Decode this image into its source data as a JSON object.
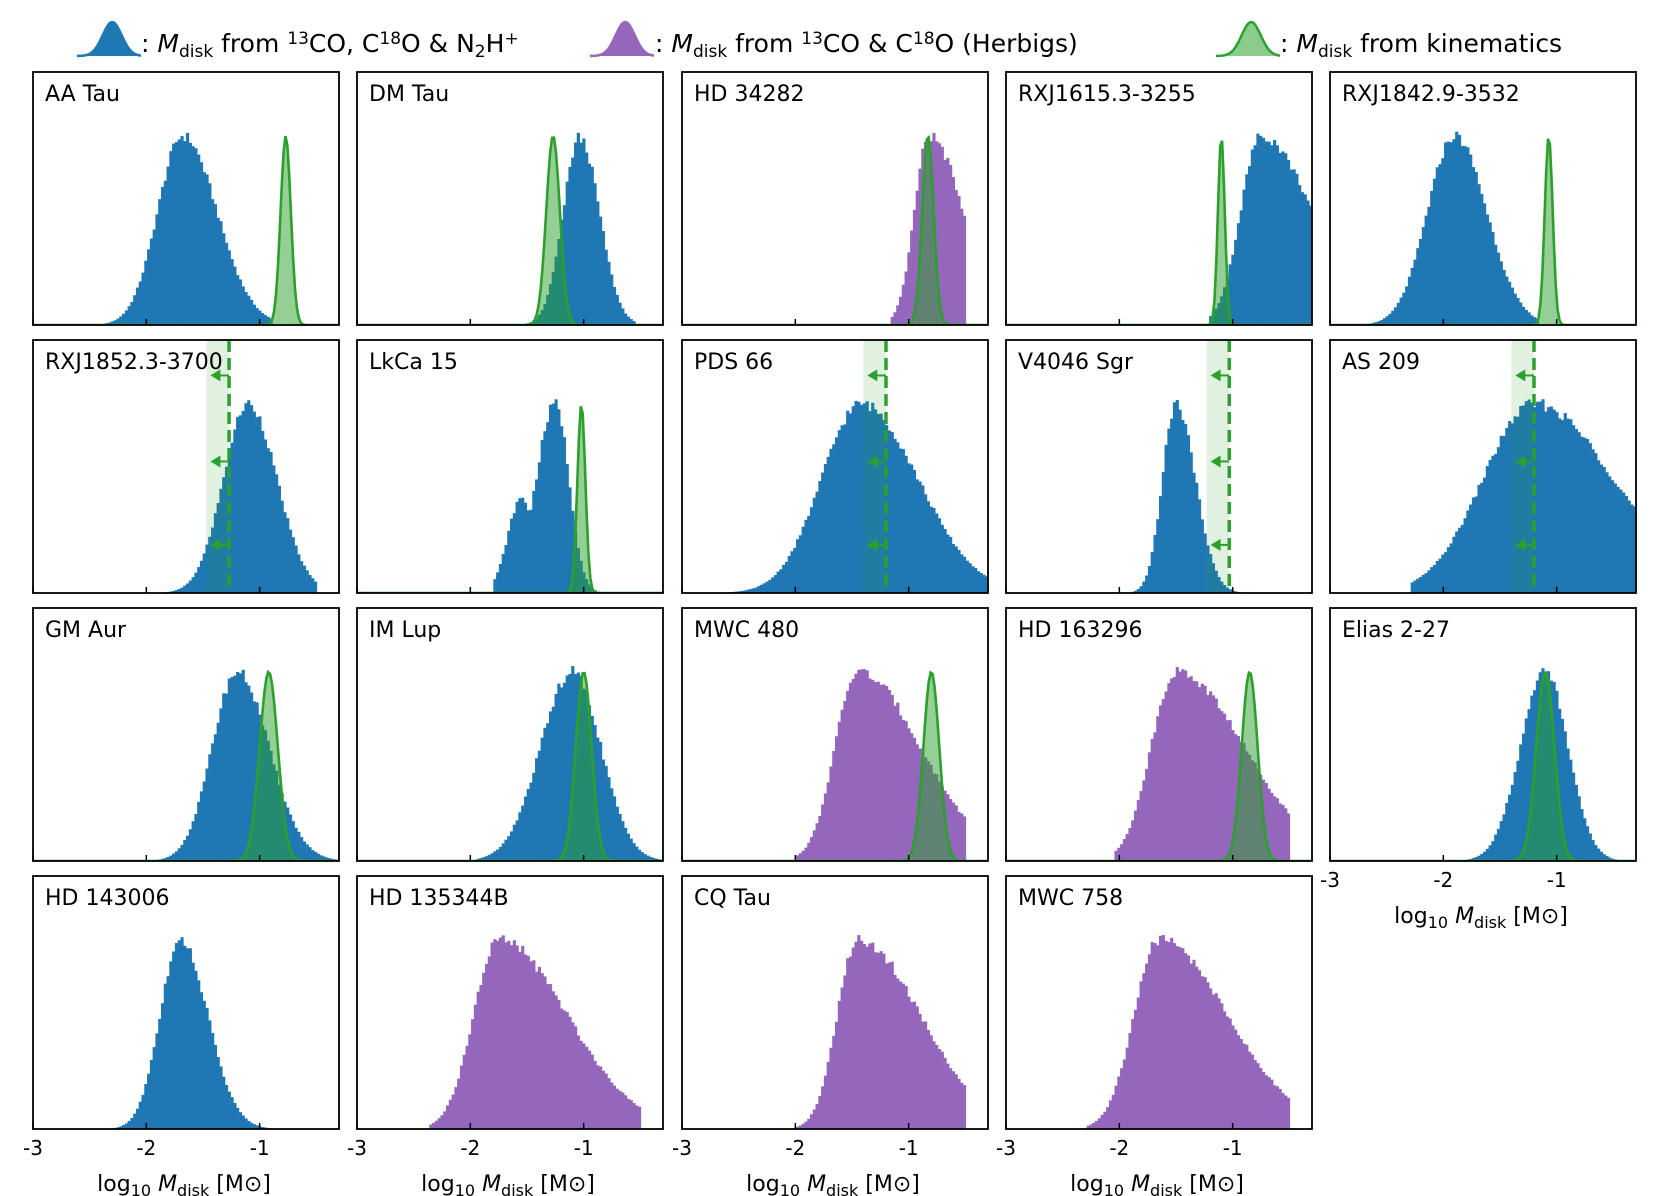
{
  "legend": {
    "blue": {
      "label": "Mdisk",
      "prefix": ": ",
      "suffix": " from ",
      "extra": "13CO, C18O & N2H+",
      "parts": [
        ": ",
        "M",
        "disk",
        " from ",
        "13",
        "CO, C",
        "18",
        "O & N",
        "2",
        "H",
        "+"
      ]
    },
    "purple": {
      "parts": [
        ": ",
        "M",
        "disk",
        " from ",
        "13",
        "CO & C",
        "18",
        "O (Herbigs)"
      ]
    },
    "green": {
      "parts": [
        ": ",
        "M",
        "disk",
        " from kinematics"
      ]
    }
  },
  "colors": {
    "blue": "#1f77b4",
    "purple": "#9467bd",
    "green": "#2ca02c",
    "green_fill": "#8fd08f"
  },
  "axis": {
    "xlabel_parts": [
      "log",
      "10",
      " ",
      "M",
      "disk",
      " [M",
      "⊙",
      "]"
    ],
    "ticks": [
      {
        "value": -3,
        "label": "-3"
      },
      {
        "value": -2,
        "label": "-2"
      },
      {
        "value": -1,
        "label": "-1"
      }
    ]
  },
  "chart_data": {
    "type": "histogram-grid",
    "xlim": [
      -3,
      -0.3
    ],
    "xlabel": "log10 Mdisk [M⊙]",
    "panels": [
      {
        "name": "AA Tau",
        "dist": "blue",
        "peak": -1.68,
        "sl": 0.22,
        "sr": 0.3,
        "lo": -2.45,
        "hi": -0.9,
        "kin": {
          "type": "gauss",
          "mu": -0.77,
          "s": 0.045
        }
      },
      {
        "name": "DM Tau",
        "dist": "blue",
        "peak": -1.03,
        "sl": 0.15,
        "sr": 0.17,
        "lo": -1.9,
        "hi": -0.55,
        "flat": 0.55,
        "kin": {
          "type": "gauss",
          "mu": -1.27,
          "s": 0.06
        }
      },
      {
        "name": "HD 34282",
        "dist": "purple",
        "peak": -0.82,
        "sl": 0.13,
        "sr": 0.3,
        "lo": -1.15,
        "hi": -0.5,
        "kin": {
          "type": "gauss",
          "mu": -0.83,
          "s": 0.05
        }
      },
      {
        "name": "RXJ1615.3-3255",
        "dist": "blue",
        "peak": -0.75,
        "sl": 0.18,
        "sr": 0.45,
        "lo": -1.2,
        "hi": -0.3,
        "kin": {
          "type": "gauss",
          "mu": -1.1,
          "s": 0.03
        }
      },
      {
        "name": "RXJ1842.9-3532",
        "dist": "blue",
        "peak": -1.9,
        "sl": 0.24,
        "sr": 0.28,
        "lo": -2.7,
        "hi": -1.15,
        "kin": {
          "type": "gauss",
          "mu": -1.07,
          "s": 0.035
        }
      },
      {
        "name": "RXJ1852.3-3700",
        "dist": "blue",
        "peak": -1.1,
        "sl": 0.22,
        "sr": 0.25,
        "lo": -1.85,
        "hi": -0.5,
        "kin": {
          "type": "limit",
          "x": -1.27,
          "w": 0.2
        }
      },
      {
        "name": "LkCa 15",
        "dist": "blue",
        "peak": -1.25,
        "sl": 0.17,
        "sr": 0.12,
        "lo": -1.8,
        "hi": -0.8,
        "shoulder": true,
        "kin": {
          "type": "gauss",
          "mu": -1.02,
          "s": 0.035
        }
      },
      {
        "name": "PDS 66",
        "dist": "blue",
        "peak": -1.42,
        "sl": 0.35,
        "sr": 0.5,
        "lo": -2.7,
        "hi": -0.3,
        "kin": {
          "type": "limit",
          "x": -1.2,
          "w": 0.2
        }
      },
      {
        "name": "V4046 Sgr",
        "dist": "blue",
        "peak": -1.5,
        "sl": 0.12,
        "sr": 0.17,
        "lo": -2.0,
        "hi": -0.9,
        "kin": {
          "type": "limit",
          "x": -1.03,
          "w": 0.2
        }
      },
      {
        "name": "AS 209",
        "dist": "blue",
        "peak": -1.2,
        "sl": 0.45,
        "sr": 0.7,
        "lo": -2.3,
        "hi": -0.3,
        "kin": {
          "type": "limit",
          "x": -1.2,
          "w": 0.2
        }
      },
      {
        "name": "GM Aur",
        "dist": "blue",
        "peak": -1.2,
        "sl": 0.22,
        "sr": 0.28,
        "lo": -2.0,
        "hi": -0.3,
        "kin": {
          "type": "gauss",
          "mu": -0.92,
          "s": 0.08
        }
      },
      {
        "name": "IM Lup",
        "dist": "blue",
        "peak": -1.1,
        "sl": 0.28,
        "sr": 0.25,
        "lo": -1.95,
        "hi": -0.3,
        "kin": {
          "type": "gauss",
          "mu": -1.0,
          "s": 0.07
        }
      },
      {
        "name": "MWC 480",
        "dist": "purple",
        "peak": -1.45,
        "sl": 0.2,
        "sr": 0.55,
        "lo": -2.0,
        "hi": -0.5,
        "kin": {
          "type": "gauss",
          "mu": -0.8,
          "s": 0.07
        }
      },
      {
        "name": "HD 163296",
        "dist": "purple",
        "peak": -1.5,
        "sl": 0.22,
        "sr": 0.6,
        "lo": -2.05,
        "hi": -0.5,
        "kin": {
          "type": "gauss",
          "mu": -0.85,
          "s": 0.07
        }
      },
      {
        "name": "Elias 2-27",
        "dist": "blue",
        "peak": -1.1,
        "sl": 0.22,
        "sr": 0.2,
        "lo": -1.85,
        "hi": -0.3,
        "kin": {
          "type": "gauss",
          "mu": -1.1,
          "s": 0.08
        }
      },
      {
        "name": "HD 143006",
        "dist": "blue",
        "peak": -1.7,
        "sl": 0.18,
        "sr": 0.24,
        "lo": -2.4,
        "hi": -0.9,
        "kin": null
      },
      {
        "name": "HD 135344B",
        "dist": "purple",
        "peak": -1.75,
        "sl": 0.22,
        "sr": 0.6,
        "lo": -2.35,
        "hi": -0.5,
        "kin": null
      },
      {
        "name": "CQ Tau",
        "dist": "purple",
        "peak": -1.45,
        "sl": 0.18,
        "sr": 0.55,
        "lo": -2.0,
        "hi": -0.5,
        "kin": null
      },
      {
        "name": "MWC 758",
        "dist": "purple",
        "peak": -1.65,
        "sl": 0.22,
        "sr": 0.6,
        "lo": -2.3,
        "hi": -0.5,
        "kin": null
      }
    ]
  }
}
